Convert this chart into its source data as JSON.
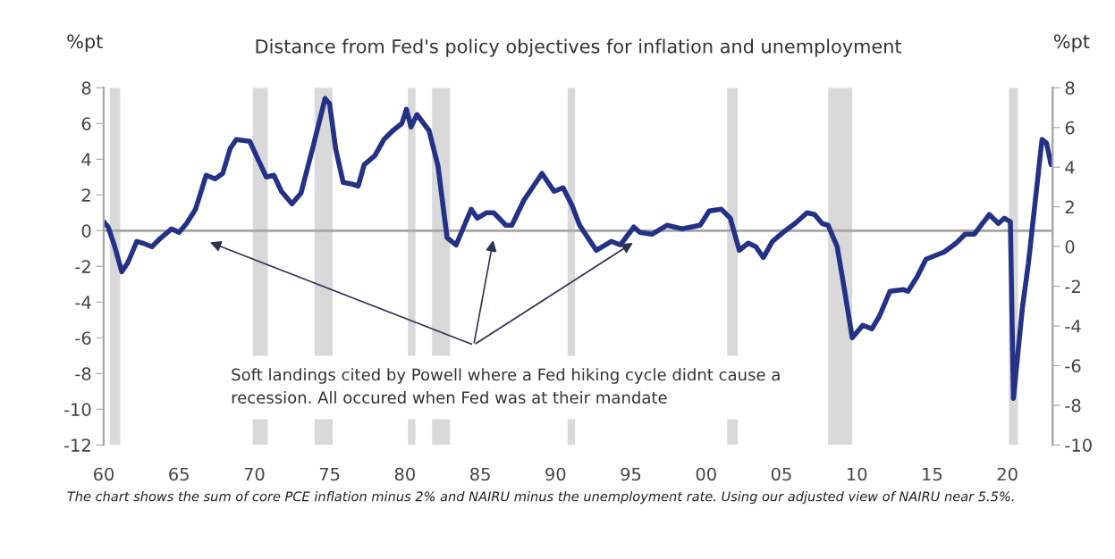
{
  "chart_data": {
    "type": "line",
    "title": "Distance from Fed's policy objectives for inflation and unemployment",
    "ylabel": "%pt",
    "y2label": "%pt",
    "x": [
      1960.0,
      1960.3,
      1960.7,
      1961.2,
      1961.6,
      1962.2,
      1962.6,
      1963.2,
      1963.8,
      1964.5,
      1965.0,
      1965.5,
      1966.1,
      1966.8,
      1967.4,
      1967.9,
      1968.4,
      1968.8,
      1969.7,
      1970.3,
      1970.8,
      1971.3,
      1971.8,
      1972.5,
      1973.1,
      1973.9,
      1974.7,
      1975.0,
      1975.4,
      1975.9,
      1976.5,
      1976.9,
      1977.3,
      1978.0,
      1978.6,
      1979.2,
      1979.8,
      1980.1,
      1980.4,
      1980.8,
      1981.6,
      1982.2,
      1982.8,
      1983.4,
      1984.0,
      1984.4,
      1984.8,
      1985.4,
      1985.9,
      1986.7,
      1987.1,
      1987.9,
      1989.1,
      1989.9,
      1990.5,
      1991.1,
      1991.6,
      1992.7,
      1993.7,
      1994.3,
      1995.2,
      1995.6,
      1996.4,
      1997.4,
      1998.4,
      1999.6,
      2000.2,
      2001.0,
      2001.6,
      2002.2,
      2002.8,
      2003.3,
      2003.8,
      2004.4,
      2005.1,
      2005.9,
      2006.7,
      2007.2,
      2007.7,
      2008.1,
      2008.7,
      2009.2,
      2009.7,
      2010.4,
      2011.0,
      2011.5,
      2012.2,
      2013.1,
      2013.4,
      2014.0,
      2014.6,
      2015.2,
      2015.8,
      2016.6,
      2017.2,
      2017.8,
      2018.8,
      2019.4,
      2019.8,
      2020.2,
      2020.4,
      2021.0,
      2021.4,
      2022.3,
      2022.6,
      2022.9
    ],
    "series": [
      {
        "color": "#233287",
        "values": [
          0.5,
          0.2,
          -0.8,
          -2.3,
          -1.8,
          -0.6,
          -0.7,
          -0.9,
          -0.4,
          0.1,
          -0.1,
          0.4,
          1.2,
          3.1,
          2.9,
          3.2,
          4.6,
          5.1,
          5.0,
          3.9,
          3.0,
          3.1,
          2.2,
          1.5,
          2.1,
          4.7,
          7.4,
          7.1,
          4.6,
          2.7,
          2.6,
          2.5,
          3.7,
          4.2,
          5.1,
          5.6,
          6.0,
          6.8,
          5.8,
          6.5,
          5.6,
          3.6,
          -0.4,
          -0.8,
          0.4,
          1.2,
          0.7,
          1.0,
          1.0,
          0.3,
          0.3,
          1.7,
          3.2,
          2.2,
          2.4,
          1.4,
          0.3,
          -1.1,
          -0.6,
          -0.8,
          0.2,
          -0.1,
          -0.2,
          0.3,
          0.1,
          0.3,
          1.1,
          1.2,
          0.7,
          -1.1,
          -0.7,
          -0.9,
          -1.5,
          -0.6,
          -0.1,
          0.4,
          1.0,
          0.9,
          0.4,
          0.3,
          -0.9,
          -3.4,
          -6.0,
          -5.3,
          -5.5,
          -4.8,
          -3.4,
          -3.3,
          -3.4,
          -2.6,
          -1.6,
          -1.4,
          -1.2,
          -0.7,
          -0.2,
          -0.2,
          0.9,
          0.4,
          0.7,
          0.5,
          -9.4,
          -4.3,
          -1.8,
          5.1,
          4.9,
          3.7
        ]
      }
    ],
    "xlim": [
      1960,
      2023
    ],
    "xticks": [
      {
        "value": 1960,
        "label": "60"
      },
      {
        "value": 1965,
        "label": "65"
      },
      {
        "value": 1970,
        "label": "70"
      },
      {
        "value": 1975,
        "label": "75"
      },
      {
        "value": 1980,
        "label": "80"
      },
      {
        "value": 1985,
        "label": "85"
      },
      {
        "value": 1990,
        "label": "90"
      },
      {
        "value": 1995,
        "label": "95"
      },
      {
        "value": 2000,
        "label": "00"
      },
      {
        "value": 2005,
        "label": "05"
      },
      {
        "value": 2010,
        "label": "10"
      },
      {
        "value": 2015,
        "label": "15"
      },
      {
        "value": 2020,
        "label": "20"
      }
    ],
    "ylim": [
      -12,
      8
    ],
    "yticks": [
      -12,
      -10,
      -8,
      -6,
      -4,
      -2,
      0,
      2,
      4,
      6,
      8
    ],
    "y2lim": [
      -10,
      8
    ],
    "y2ticks": [
      -10,
      -8,
      -6,
      -4,
      -2,
      0,
      2,
      4,
      6,
      8
    ],
    "ref_lines": [
      {
        "axis": "y",
        "value": 0,
        "color": "#a6a6a6"
      }
    ],
    "bands": [
      {
        "axis": "x",
        "from": 1960.4,
        "to": 1961.1,
        "color": "#d9d9d9"
      },
      {
        "axis": "x",
        "from": 1969.9,
        "to": 1970.9,
        "color": "#d9d9d9"
      },
      {
        "axis": "x",
        "from": 1974.0,
        "to": 1975.2,
        "color": "#d9d9d9"
      },
      {
        "axis": "x",
        "from": 1980.2,
        "to": 1980.7,
        "color": "#d9d9d9"
      },
      {
        "axis": "x",
        "from": 1981.8,
        "to": 1983.0,
        "color": "#d9d9d9"
      },
      {
        "axis": "x",
        "from": 1990.8,
        "to": 1991.3,
        "color": "#d9d9d9"
      },
      {
        "axis": "x",
        "from": 2001.4,
        "to": 2002.1,
        "color": "#d9d9d9"
      },
      {
        "axis": "x",
        "from": 2008.1,
        "to": 2009.7,
        "color": "#d9d9d9"
      },
      {
        "axis": "x",
        "from": 2020.1,
        "to": 2020.7,
        "color": "#d9d9d9"
      }
    ],
    "annotations": [
      "Soft landings cited by Powell where a Fed hiking cycle didnt cause a\nrecession. All occured when Fed was at their mandate",
      "The chart shows the sum of core PCE inflation minus 2% and NAIRU minus the unemployment rate. Using our adjusted view of NAIRU near 5.5%."
    ],
    "grid": false,
    "legend": false,
    "marker": "none",
    "line_style": "solid"
  }
}
